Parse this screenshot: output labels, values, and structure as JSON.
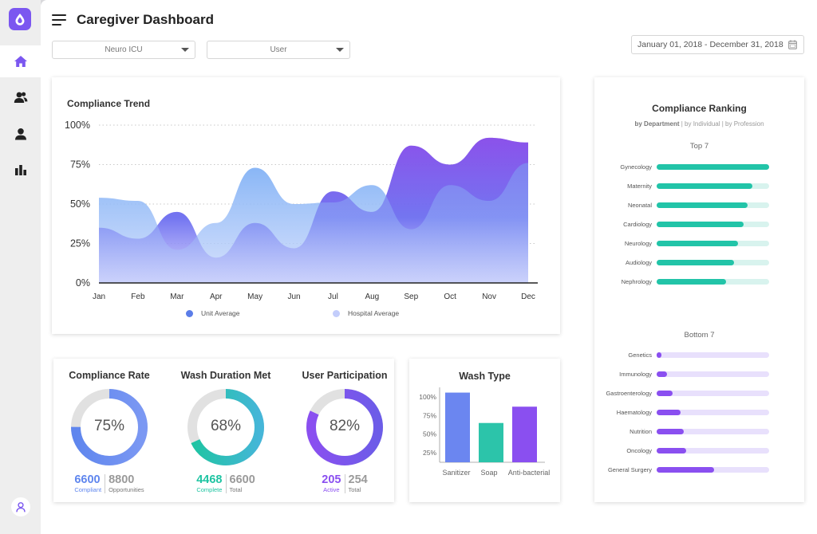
{
  "app": {
    "title": "Caregiver Dashboard"
  },
  "sidebar": {
    "items": [
      {
        "icon": "home-icon"
      },
      {
        "icon": "users-icon"
      },
      {
        "icon": "user-icon"
      },
      {
        "icon": "bar-chart-icon"
      }
    ],
    "accent": "#7b57f0"
  },
  "filters": {
    "unit": "Neuro ICU",
    "user": "User",
    "date_range": "January 01, 2018 - December 31, 2018"
  },
  "trend": {
    "title": "Compliance Trend",
    "yticks": [
      "100%",
      "75%",
      "50%",
      "25%",
      "0%"
    ],
    "legend": [
      {
        "label": "Unit Average",
        "color": "#5b7de8"
      },
      {
        "label": "Hospital Average",
        "color": "#c3cdfb"
      }
    ]
  },
  "gauges": [
    {
      "title": "Compliance Rate",
      "pct": "75%",
      "value": 0.75,
      "color": "#5f86ee",
      "color2": "#7b98f3",
      "stat1": "6600",
      "stat1_label": "Compliant",
      "stat2": "8800",
      "stat2_label": "Opportunities"
    },
    {
      "title": "Wash Duration Met",
      "pct": "68%",
      "value": 0.68,
      "color": "#1ec4a2",
      "color2": "#45b6d8",
      "stat1": "4468",
      "stat1_label": "Complete",
      "stat2": "6600",
      "stat2_label": "Total"
    },
    {
      "title": "User Participation",
      "pct": "82%",
      "value": 0.82,
      "color": "#8a4ff0",
      "color2": "#6c5ce8",
      "stat1": "205",
      "stat1_label": "Active",
      "stat2": "254",
      "stat2_label": "Total"
    }
  ],
  "wash_type": {
    "title": "Wash Type",
    "yticks": [
      "100%",
      "75%",
      "50%",
      "25%"
    ]
  },
  "ranking": {
    "title": "Compliance Ranking",
    "filter_active": "by Department",
    "filter_opts": [
      "by Individual",
      "by Profession"
    ],
    "top_label": "Top 7",
    "bottom_label": "Bottom 7",
    "top_color": "#22c4a8",
    "top_track": "#d8f3ee",
    "bottom_color": "#8a4ff0",
    "bottom_track": "#e8e0fc",
    "top": [
      {
        "label": "Gynecology",
        "value": 1.0
      },
      {
        "label": "Maternity",
        "value": 0.85
      },
      {
        "label": "Neonatal",
        "value": 0.81
      },
      {
        "label": "Cardiology",
        "value": 0.77
      },
      {
        "label": "Neurology",
        "value": 0.72
      },
      {
        "label": "Audiology",
        "value": 0.69
      },
      {
        "label": "Nephrology",
        "value": 0.62
      }
    ],
    "bottom": [
      {
        "label": "Genetics",
        "value": 0.04
      },
      {
        "label": "Immunology",
        "value": 0.09
      },
      {
        "label": "Gastroenterology",
        "value": 0.14
      },
      {
        "label": "Haematology",
        "value": 0.21
      },
      {
        "label": "Nutrition",
        "value": 0.24
      },
      {
        "label": "Oncology",
        "value": 0.26
      },
      {
        "label": "General Surgery",
        "value": 0.51
      }
    ]
  },
  "chart_data": [
    {
      "type": "area",
      "title": "Compliance Trend",
      "categories": [
        "Jan",
        "Feb",
        "Mar",
        "Apr",
        "May",
        "Jun",
        "Jul",
        "Aug",
        "Sep",
        "Oct",
        "Nov",
        "Dec"
      ],
      "ylim": [
        0,
        100
      ],
      "grid": true,
      "legend": "bottom",
      "series": [
        {
          "name": "Unit Average",
          "values": [
            35,
            28,
            45,
            16,
            38,
            22,
            58,
            45,
            87,
            75,
            92,
            89
          ]
        },
        {
          "name": "Hospital Average",
          "values": [
            54,
            52,
            21,
            38,
            73,
            50,
            51,
            62,
            34,
            62,
            52,
            76
          ]
        }
      ]
    },
    {
      "type": "bar",
      "title": "Wash Type",
      "categories": [
        "Sanitizer",
        "Soap",
        "Anti-bacterial"
      ],
      "values": [
        94,
        53,
        75
      ],
      "ylim": [
        0,
        100
      ]
    }
  ]
}
